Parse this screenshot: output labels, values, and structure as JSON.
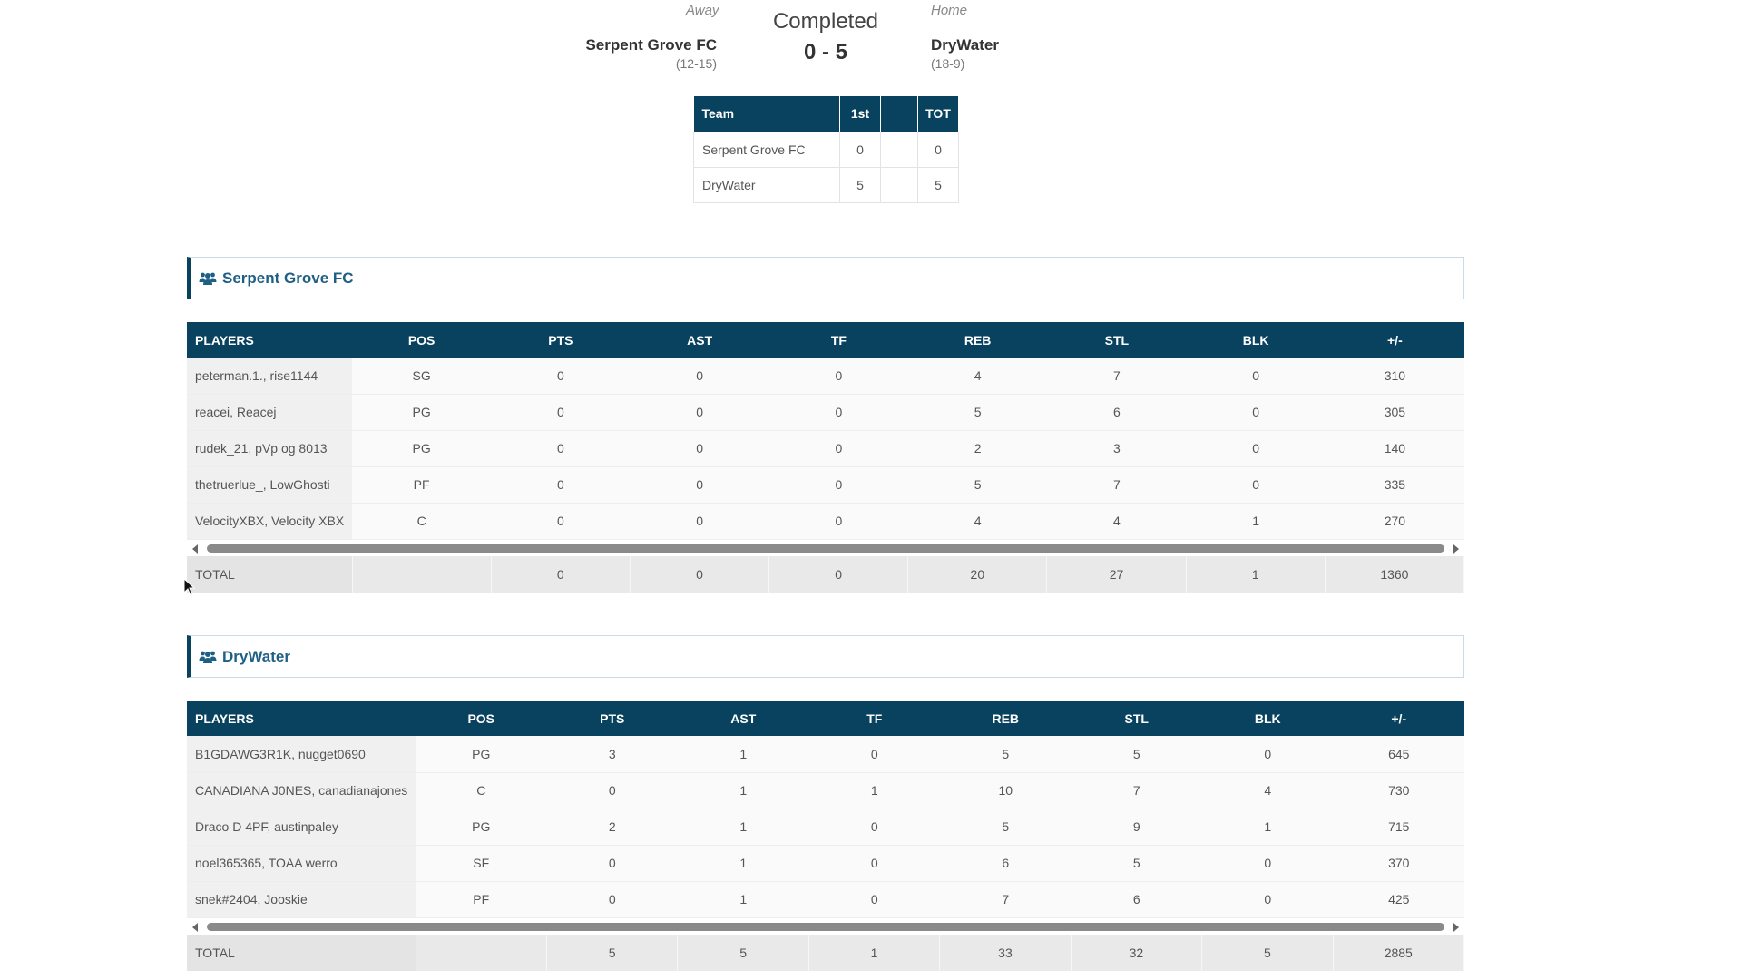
{
  "game": {
    "away_label": "Away",
    "home_label": "Home",
    "status": "Completed",
    "score": "0 - 5",
    "away": {
      "name": "Serpent Grove FC",
      "record": "(12-15)"
    },
    "home": {
      "name": "DryWater",
      "record": "(18-9)"
    }
  },
  "linescore": {
    "headers": [
      "Team",
      "1st",
      "",
      "TOT"
    ],
    "rows": [
      [
        "Serpent Grove FC",
        "0",
        "",
        "0"
      ],
      [
        "DryWater",
        "5",
        "",
        "5"
      ]
    ]
  },
  "columns": [
    "PLAYERS",
    "POS",
    "PTS",
    "AST",
    "TF",
    "REB",
    "STL",
    "BLK",
    "+/-"
  ],
  "teams": [
    {
      "name": "Serpent Grove FC",
      "icon": "users-icon",
      "players": [
        [
          "peterman.1., rise1144",
          "SG",
          "0",
          "0",
          "0",
          "4",
          "7",
          "0",
          "310"
        ],
        [
          "reacei, Reacej",
          "PG",
          "0",
          "0",
          "0",
          "5",
          "6",
          "0",
          "305"
        ],
        [
          "rudek_21, pVp og 8013",
          "PG",
          "0",
          "0",
          "0",
          "2",
          "3",
          "0",
          "140"
        ],
        [
          "thetruerlue_, LowGhosti",
          "PF",
          "0",
          "0",
          "0",
          "5",
          "7",
          "0",
          "335"
        ],
        [
          "VelocityXBX, Velocity XBX",
          "C",
          "0",
          "0",
          "0",
          "4",
          "4",
          "1",
          "270"
        ]
      ],
      "total": [
        "TOTAL",
        "",
        "0",
        "0",
        "0",
        "20",
        "27",
        "1",
        "1360"
      ]
    },
    {
      "name": "DryWater",
      "icon": "users-icon",
      "players": [
        [
          "B1GDAWG3R1K, nugget0690",
          "PG",
          "3",
          "1",
          "0",
          "5",
          "5",
          "0",
          "645"
        ],
        [
          "CANADIANA J0NES, canadianajones",
          "C",
          "0",
          "1",
          "1",
          "10",
          "7",
          "4",
          "730"
        ],
        [
          "Draco D 4PF, austinpaley",
          "PG",
          "2",
          "1",
          "0",
          "5",
          "9",
          "1",
          "715"
        ],
        [
          "noel365365, TOAA werro",
          "SF",
          "0",
          "1",
          "0",
          "6",
          "5",
          "0",
          "370"
        ],
        [
          "snek#2404, Jooskie",
          "PF",
          "0",
          "1",
          "0",
          "7",
          "6",
          "0",
          "425"
        ]
      ],
      "total": [
        "TOTAL",
        "",
        "5",
        "5",
        "1",
        "33",
        "32",
        "5",
        "2885"
      ]
    }
  ],
  "colors": {
    "header_bg": "#08425e",
    "team_title": "#1d5f85"
  }
}
